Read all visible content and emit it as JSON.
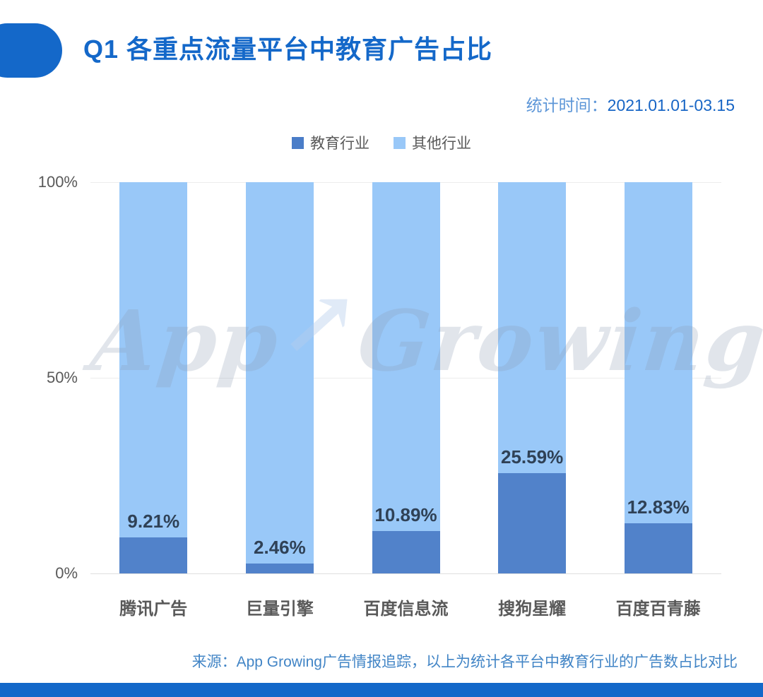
{
  "header": {
    "title": "Q1 各重点流量平台中教育广告占比",
    "stat_label": "统计时间：",
    "stat_value": "2021.01.01-03.15"
  },
  "legend": [
    {
      "label": "教育行业",
      "color": "#4a7dc8"
    },
    {
      "label": "其他行业",
      "color": "#99c8f8"
    }
  ],
  "chart_data": {
    "type": "bar",
    "stacked": true,
    "title": "Q1 各重点流量平台中教育广告占比",
    "categories": [
      "腾讯广告",
      "巨量引擎",
      "百度信息流",
      "搜狗星耀",
      "百度百青藤"
    ],
    "series": [
      {
        "name": "教育行业",
        "values": [
          9.21,
          2.46,
          10.89,
          25.59,
          12.83
        ],
        "color": "#5182ca"
      },
      {
        "name": "其他行业",
        "values": [
          90.79,
          97.54,
          89.11,
          74.41,
          87.17
        ],
        "color": "#99c8f8"
      }
    ],
    "value_labels": [
      "9.21%",
      "2.46%",
      "10.89%",
      "25.59%",
      "12.83%"
    ],
    "yticks": [
      {
        "label": "100%",
        "value": 100
      },
      {
        "label": "50%",
        "value": 50
      },
      {
        "label": "0%",
        "value": 0
      }
    ],
    "ylim": [
      0,
      100
    ],
    "grid": true,
    "legend_position": "top"
  },
  "watermark": {
    "text_left": "App",
    "arrow": "↗",
    "text_right": "Growing"
  },
  "footer": {
    "source": "来源：App Growing广告情报追踪，以上为统计各平台中教育行业的广告数占比对比"
  },
  "colors": {
    "accent_blue": "#1468c9",
    "stat_label_blue": "#5e97d8",
    "stat_value_blue": "#1765c5",
    "education_bar": "#5182ca",
    "other_bar": "#99c8f8",
    "value_label_text": "#2f4156",
    "axis_text": "#595959",
    "footer_text": "#4285c6",
    "gridline": "#ececec"
  }
}
